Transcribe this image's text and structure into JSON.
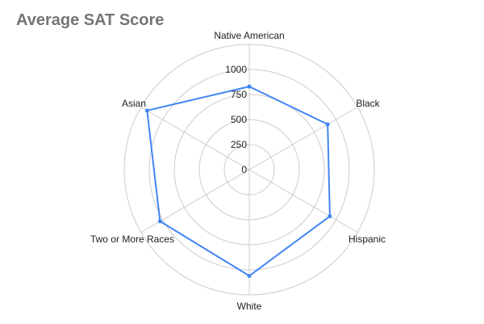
{
  "chart_data": {
    "type": "radar",
    "title": "Average SAT Score",
    "categories": [
      "Native American",
      "Black",
      "Hispanic",
      "White",
      "Two or More Races",
      "Asian"
    ],
    "series": [
      {
        "values": [
          830,
          905,
          930,
          1060,
          1030,
          1180
        ]
      }
    ],
    "rlim": [
      0,
      1000
    ],
    "ticks": [
      0,
      250,
      500,
      750,
      1000
    ],
    "grid": true,
    "legend": "none",
    "colors": {
      "series": "#4285f4",
      "grid": "#cccccc",
      "title": "#757575",
      "text": "#222222"
    }
  }
}
